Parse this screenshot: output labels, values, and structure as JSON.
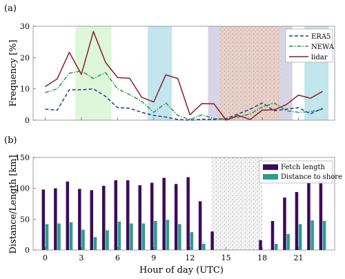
{
  "chart_data": [
    {
      "panel": "(a)",
      "type": "line",
      "xlabel": "",
      "ylabel": "Frequency [%]",
      "ylim": [
        0,
        30
      ],
      "yticks": [
        0,
        10,
        20,
        30
      ],
      "xlim": [
        -1,
        24
      ],
      "grid": false,
      "legend": "top-right",
      "x": [
        0,
        1,
        2,
        3,
        4,
        5,
        6,
        7,
        8,
        9,
        10,
        11,
        12,
        13,
        14,
        15,
        16,
        17,
        18,
        19,
        20,
        21,
        22,
        23
      ],
      "series": [
        {
          "name": "ERA5",
          "color": "#1f3a8a",
          "dash": "dashed",
          "values": [
            3.5,
            3.2,
            9.7,
            9.7,
            10.0,
            7.6,
            4.0,
            3.8,
            2.5,
            1.5,
            1.0,
            0.2,
            0.0,
            0.3,
            0.2,
            0.5,
            2.0,
            3.5,
            5.5,
            3.0,
            3.5,
            4.0,
            2.0,
            3.8
          ]
        },
        {
          "name": "NEWA",
          "color": "#1f9a4a",
          "dash": "dashdot",
          "values": [
            8.8,
            10.0,
            15.0,
            15.7,
            13.3,
            15.2,
            10.0,
            8.2,
            6.0,
            2.5,
            5.5,
            1.5,
            0.2,
            1.7,
            0.5,
            0.3,
            1.0,
            2.0,
            4.2,
            5.5,
            3.0,
            2.5,
            2.7,
            3.5
          ]
        },
        {
          "name": "lidar",
          "color": "#8b1a2b",
          "dash": "solid",
          "values": [
            10.7,
            13.2,
            21.7,
            14.6,
            28.3,
            18.5,
            13.6,
            13.4,
            7.3,
            5.8,
            14.5,
            13.3,
            1.7,
            5.3,
            5.2,
            0.0,
            1.5,
            0.2,
            3.2,
            3.3,
            5.0,
            8.0,
            7.0,
            9.2
          ]
        }
      ],
      "shaded_bands": [
        {
          "from": 2.5,
          "to": 5.5,
          "color": "#d8f5d2"
        },
        {
          "from": 8.5,
          "to": 10.5,
          "color": "#b9e0ea"
        },
        {
          "from": 13.5,
          "to": 14.5,
          "color": "#cfcde0"
        },
        {
          "from": 14.5,
          "to": 19.5,
          "color": "#e6c9be",
          "stippled": true
        },
        {
          "from": 19.5,
          "to": 20.5,
          "color": "#cfcde0"
        },
        {
          "from": 21.5,
          "to": 23.5,
          "color": "#b9e0ea"
        }
      ]
    },
    {
      "panel": "(b)",
      "type": "bar",
      "xlabel": "Hour of day (UTC)",
      "ylabel": "Distance/Length [km]",
      "ylim": [
        0,
        150
      ],
      "yticks": [
        0,
        50,
        100,
        150
      ],
      "xlim": [
        -1,
        24
      ],
      "xticks": [
        0,
        3,
        6,
        9,
        12,
        15,
        18,
        21
      ],
      "grid": false,
      "legend": "top-right",
      "categories": [
        0,
        1,
        2,
        3,
        4,
        5,
        6,
        7,
        8,
        9,
        10,
        11,
        12,
        13,
        14,
        15,
        16,
        17,
        18,
        19,
        20,
        21,
        22,
        23
      ],
      "series": [
        {
          "name": "Fetch length",
          "color": "#3d0a5c",
          "values": [
            98,
            100,
            111,
            99,
            97,
            104,
            113,
            113,
            105,
            109,
            117,
            107,
            118,
            79,
            30,
            0,
            0,
            0,
            16,
            47,
            85,
            94,
            110,
            108
          ]
        },
        {
          "name": "Distance to shore",
          "color": "#2a9d8f",
          "values": [
            42,
            43,
            45,
            33,
            21,
            32,
            46,
            43,
            43,
            47,
            49,
            42,
            29,
            10,
            0,
            0,
            0,
            0,
            0,
            10,
            26,
            42,
            48,
            47
          ]
        }
      ],
      "shaded_bands": [
        {
          "from": 13.8,
          "to": 18.0,
          "color": "#f4f4f4",
          "stippled": true
        }
      ]
    }
  ]
}
